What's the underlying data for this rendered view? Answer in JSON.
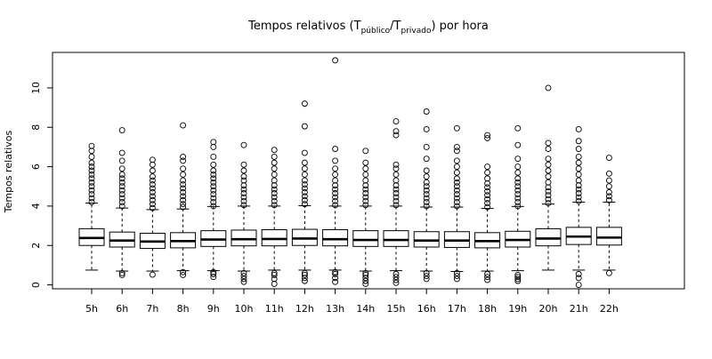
{
  "chart_data": {
    "type": "boxplot",
    "title": {
      "prefix": "Tempos relativos (T",
      "sub1": "público",
      "middle": "/T",
      "sub2": "privado",
      "suffix": ") por hora"
    },
    "xlabel": "",
    "ylabel": "Tempos relativos",
    "ylim": [
      -0.2,
      11.8
    ],
    "yticks": [
      0,
      2,
      4,
      6,
      8,
      10
    ],
    "categories": [
      "5h",
      "6h",
      "7h",
      "8h",
      "9h",
      "10h",
      "11h",
      "12h",
      "13h",
      "14h",
      "15h",
      "16h",
      "17h",
      "18h",
      "19h",
      "20h",
      "21h",
      "22h"
    ],
    "boxes": [
      {
        "label": "5h",
        "whisker_low": 0.75,
        "q1": 2.0,
        "median": 2.38,
        "q3": 2.85,
        "whisker_high": 4.15,
        "outliers_low": [],
        "outliers_high": [
          4.2,
          4.4,
          4.6,
          4.8,
          5.0,
          5.2,
          5.4,
          5.6,
          5.8,
          6.0,
          6.2,
          6.5,
          6.8,
          7.05
        ]
      },
      {
        "label": "6h",
        "whisker_low": 0.7,
        "q1": 1.92,
        "median": 2.25,
        "q3": 2.68,
        "whisker_high": 3.9,
        "outliers_low": [
          0.5,
          0.6
        ],
        "outliers_high": [
          4.0,
          4.2,
          4.4,
          4.6,
          4.8,
          5.0,
          5.2,
          5.4,
          5.6,
          5.9,
          6.3,
          6.7,
          7.85
        ]
      },
      {
        "label": "7h",
        "whisker_low": 0.7,
        "q1": 1.85,
        "median": 2.2,
        "q3": 2.62,
        "whisker_high": 3.82,
        "outliers_low": [
          0.52
        ],
        "outliers_high": [
          3.9,
          4.1,
          4.3,
          4.5,
          4.7,
          4.9,
          5.1,
          5.3,
          5.5,
          5.8,
          6.1,
          6.35
        ]
      },
      {
        "label": "8h",
        "whisker_low": 0.72,
        "q1": 1.88,
        "median": 2.22,
        "q3": 2.65,
        "whisker_high": 3.85,
        "outliers_low": [
          0.5,
          0.65
        ],
        "outliers_high": [
          3.95,
          4.1,
          4.3,
          4.5,
          4.7,
          4.9,
          5.1,
          5.3,
          5.6,
          5.9,
          6.3,
          6.5,
          8.1
        ]
      },
      {
        "label": "9h",
        "whisker_low": 0.72,
        "q1": 1.95,
        "median": 2.3,
        "q3": 2.75,
        "whisker_high": 3.98,
        "outliers_low": [
          0.4,
          0.55,
          0.65
        ],
        "outliers_high": [
          4.0,
          4.2,
          4.4,
          4.6,
          4.8,
          5.0,
          5.2,
          5.4,
          5.6,
          5.8,
          6.1,
          6.5,
          7.0,
          7.25
        ]
      },
      {
        "label": "10h",
        "whisker_low": 0.7,
        "q1": 1.98,
        "median": 2.32,
        "q3": 2.78,
        "whisker_high": 4.0,
        "outliers_low": [
          0.15,
          0.3,
          0.45,
          0.6
        ],
        "outliers_high": [
          4.05,
          4.25,
          4.45,
          4.65,
          4.85,
          5.05,
          5.3,
          5.5,
          5.8,
          6.1,
          7.1
        ]
      },
      {
        "label": "11h",
        "whisker_low": 0.75,
        "q1": 1.98,
        "median": 2.33,
        "q3": 2.8,
        "whisker_high": 4.0,
        "outliers_low": [
          0.05,
          0.3,
          0.5,
          0.6
        ],
        "outliers_high": [
          4.05,
          4.25,
          4.45,
          4.65,
          4.85,
          5.05,
          5.3,
          5.6,
          5.9,
          6.2,
          6.5,
          6.85
        ]
      },
      {
        "label": "12h",
        "whisker_low": 0.75,
        "q1": 2.0,
        "median": 2.35,
        "q3": 2.82,
        "whisker_high": 4.02,
        "outliers_low": [
          0.2,
          0.35,
          0.5,
          0.6
        ],
        "outliers_high": [
          4.1,
          4.3,
          4.5,
          4.7,
          4.9,
          5.1,
          5.3,
          5.6,
          5.9,
          6.2,
          6.7,
          8.05,
          9.2
        ]
      },
      {
        "label": "13h",
        "whisker_low": 0.75,
        "q1": 1.98,
        "median": 2.32,
        "q3": 2.8,
        "whisker_high": 4.0,
        "outliers_low": [
          0.15,
          0.35,
          0.55,
          0.65
        ],
        "outliers_high": [
          4.05,
          4.25,
          4.45,
          4.65,
          4.85,
          5.05,
          5.3,
          5.6,
          5.9,
          6.3,
          6.9,
          11.4
        ]
      },
      {
        "label": "14h",
        "whisker_low": 0.7,
        "q1": 1.95,
        "median": 2.28,
        "q3": 2.75,
        "whisker_high": 4.0,
        "outliers_low": [
          0.05,
          0.2,
          0.35,
          0.5,
          0.6
        ],
        "outliers_high": [
          4.05,
          4.25,
          4.45,
          4.65,
          4.85,
          5.05,
          5.3,
          5.6,
          5.9,
          6.2,
          6.8
        ]
      },
      {
        "label": "15h",
        "whisker_low": 0.72,
        "q1": 1.95,
        "median": 2.28,
        "q3": 2.75,
        "whisker_high": 4.0,
        "outliers_low": [
          0.1,
          0.25,
          0.4,
          0.55
        ],
        "outliers_high": [
          4.05,
          4.25,
          4.45,
          4.65,
          4.85,
          5.05,
          5.3,
          5.6,
          5.9,
          6.1,
          7.6,
          7.8,
          8.3
        ]
      },
      {
        "label": "16h",
        "whisker_low": 0.7,
        "q1": 1.92,
        "median": 2.25,
        "q3": 2.7,
        "whisker_high": 3.95,
        "outliers_low": [
          0.3,
          0.45,
          0.6
        ],
        "outliers_high": [
          4.0,
          4.2,
          4.4,
          4.6,
          4.8,
          5.0,
          5.2,
          5.5,
          5.8,
          6.4,
          7.0,
          7.9,
          8.8
        ]
      },
      {
        "label": "17h",
        "whisker_low": 0.68,
        "q1": 1.9,
        "median": 2.25,
        "q3": 2.7,
        "whisker_high": 3.95,
        "outliers_low": [
          0.3,
          0.45,
          0.6
        ],
        "outliers_high": [
          4.0,
          4.2,
          4.4,
          4.6,
          4.8,
          5.0,
          5.2,
          5.4,
          5.7,
          6.0,
          6.3,
          6.8,
          7.0,
          7.95
        ]
      },
      {
        "label": "18h",
        "whisker_low": 0.7,
        "q1": 1.88,
        "median": 2.22,
        "q3": 2.65,
        "whisker_high": 3.88,
        "outliers_low": [
          0.25,
          0.4,
          0.55
        ],
        "outliers_high": [
          3.95,
          4.15,
          4.35,
          4.55,
          4.75,
          4.95,
          5.15,
          5.4,
          5.7,
          6.0,
          7.45,
          7.6
        ]
      },
      {
        "label": "19h",
        "whisker_low": 0.72,
        "q1": 1.92,
        "median": 2.28,
        "q3": 2.72,
        "whisker_high": 3.98,
        "outliers_low": [
          0.2,
          0.3,
          0.4,
          0.5
        ],
        "outliers_high": [
          4.0,
          4.2,
          4.4,
          4.6,
          4.8,
          5.0,
          5.2,
          5.4,
          5.7,
          6.0,
          6.4,
          7.1,
          7.95
        ]
      },
      {
        "label": "20h",
        "whisker_low": 0.75,
        "q1": 1.98,
        "median": 2.35,
        "q3": 2.85,
        "whisker_high": 4.1,
        "outliers_low": [],
        "outliers_high": [
          4.15,
          4.35,
          4.55,
          4.75,
          4.95,
          5.2,
          5.5,
          5.8,
          6.1,
          6.4,
          6.9,
          7.2,
          10.0
        ]
      },
      {
        "label": "21h",
        "whisker_low": 0.75,
        "q1": 2.05,
        "median": 2.45,
        "q3": 2.92,
        "whisker_high": 4.2,
        "outliers_low": [
          0.0,
          0.35,
          0.55
        ],
        "outliers_high": [
          4.25,
          4.45,
          4.65,
          4.85,
          5.05,
          5.3,
          5.6,
          5.9,
          6.2,
          6.5,
          6.9,
          7.3,
          7.9
        ]
      },
      {
        "label": "22h",
        "whisker_low": 0.75,
        "q1": 2.02,
        "median": 2.4,
        "q3": 2.92,
        "whisker_high": 4.2,
        "outliers_low": [
          0.6
        ],
        "outliers_high": [
          4.3,
          4.5,
          4.7,
          5.0,
          5.3,
          5.65,
          6.45
        ]
      }
    ]
  }
}
